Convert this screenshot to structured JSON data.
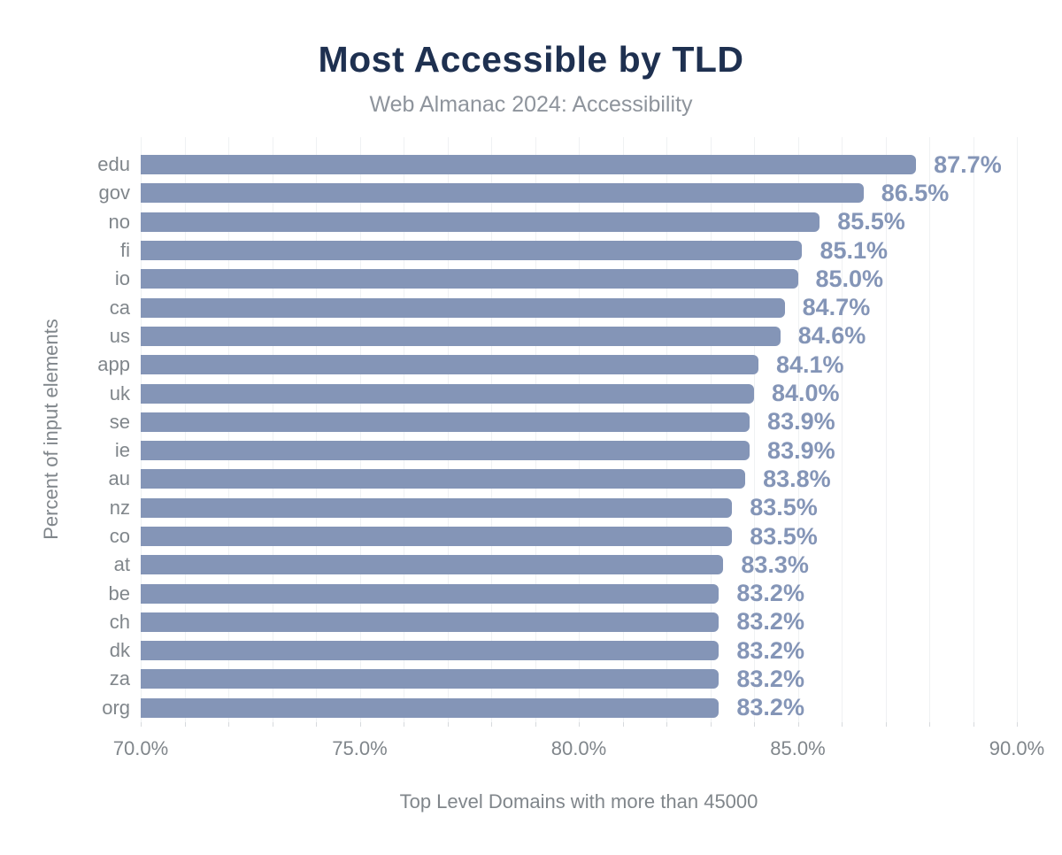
{
  "chart": {
    "title": "Most Accessible by TLD",
    "subtitle": "Web Almanac 2024: Accessibility",
    "y_axis_title": "Percent of input elements",
    "x_axis_title": "Top Level Domains with more than 45000"
  },
  "chart_data": {
    "type": "bar",
    "orientation": "horizontal",
    "title": "Most Accessible by TLD",
    "subtitle": "Web Almanac 2024: Accessibility",
    "xlabel": "Top Level Domains with more than 45000",
    "ylabel": "Percent of input elements",
    "xlim": [
      70,
      90
    ],
    "x_tick_values": [
      70,
      75,
      80,
      85,
      90
    ],
    "x_tick_labels": [
      "70.0%",
      "75.0%",
      "80.0%",
      "85.0%",
      "90.0%"
    ],
    "grid": "minor vertical gridlines every 1%, legend none",
    "categories": [
      "edu",
      "gov",
      "no",
      "fi",
      "io",
      "ca",
      "us",
      "app",
      "uk",
      "se",
      "ie",
      "au",
      "nz",
      "co",
      "at",
      "be",
      "ch",
      "dk",
      "za",
      "org"
    ],
    "values": [
      87.7,
      86.5,
      85.5,
      85.1,
      85.0,
      84.7,
      84.6,
      84.1,
      84.0,
      83.9,
      83.9,
      83.8,
      83.5,
      83.5,
      83.3,
      83.2,
      83.2,
      83.2,
      83.2,
      83.2
    ],
    "value_labels": [
      "87.7%",
      "86.5%",
      "85.5%",
      "85.1%",
      "85.0%",
      "84.7%",
      "84.6%",
      "84.1%",
      "84.0%",
      "83.9%",
      "83.9%",
      "83.8%",
      "83.5%",
      "83.5%",
      "83.3%",
      "83.2%",
      "83.2%",
      "83.2%",
      "83.2%",
      "83.2%"
    ]
  },
  "colors": {
    "background": "#ffffff",
    "bar": "#8495b7",
    "value_label": "#8495b7",
    "title": "#1e3050",
    "subtitle": "#8e949c",
    "axis_text": "#80868b",
    "gridline": "#eff1f3",
    "tick_mark": "#d7dadd"
  }
}
